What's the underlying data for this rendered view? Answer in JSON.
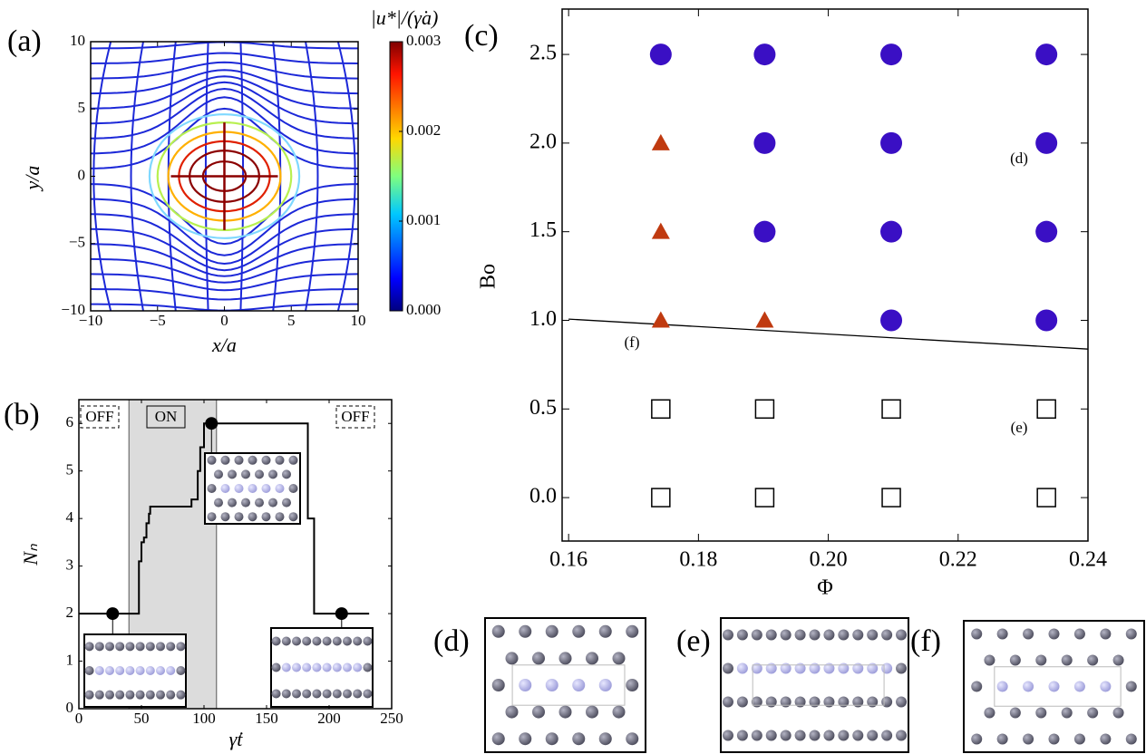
{
  "chart_data": [
    {
      "type": "streamplot",
      "panel_label": "(a)",
      "x_label": "x/a",
      "y_label": "y/a",
      "xlim": [
        -10,
        10
      ],
      "ylim": [
        -10,
        10
      ],
      "xticks": [
        {
          "value": -10,
          "label": "−10"
        },
        {
          "value": -5,
          "label": "−5"
        },
        0,
        5,
        10
      ],
      "yticks": [
        {
          "value": -10,
          "label": "−10"
        },
        {
          "value": -5,
          "label": "−5"
        },
        0,
        5,
        10
      ],
      "colorbar_label": "|u*|/(γ̇a)",
      "clim": [
        0,
        0.003
      ],
      "cticks": [
        {
          "value": 0,
          "label": "0.000"
        },
        {
          "value": 0.001,
          "label": "0.001"
        },
        {
          "value": 0.002,
          "label": "0.002"
        },
        {
          "value": 0.003,
          "label": "0.003"
        }
      ]
    },
    {
      "type": "step",
      "panel_label": "(b)",
      "x_label": "γ̇t",
      "y_label": "Nₙ",
      "xlim": [
        0,
        250
      ],
      "ylim": [
        0,
        6.5
      ],
      "xticks": [
        0,
        50,
        100,
        150,
        200,
        250
      ],
      "yticks": [
        0,
        1,
        2,
        3,
        4,
        5,
        6
      ],
      "on_region": [
        40,
        110
      ],
      "region_labels": [
        "OFF",
        "ON",
        "OFF"
      ],
      "series": [
        {
          "color": "#000000",
          "x": [
            0,
            47,
            48,
            50,
            52,
            54,
            56,
            57,
            88,
            90,
            95,
            97,
            100,
            182,
            183,
            187,
            188,
            232
          ],
          "values": [
            2,
            2,
            3.1,
            3.5,
            3.6,
            3.9,
            4.1,
            4.25,
            4.25,
            4.4,
            5,
            5.5,
            6,
            6,
            4,
            4,
            2,
            2
          ]
        }
      ],
      "markers": {
        "x": [
          27,
          106,
          210
        ],
        "values": [
          2,
          6,
          2
        ]
      }
    },
    {
      "type": "scatter",
      "panel_label": "(c)",
      "x_label": "Φ",
      "y_label": "Bo",
      "xlim": [
        0.159,
        0.24
      ],
      "ylim": [
        -0.245,
        2.756
      ],
      "xticks": [
        0.16,
        0.18,
        {
          "value": 0.2,
          "label": "0.20"
        },
        0.22,
        0.24
      ],
      "yticks": [
        {
          "value": 0,
          "label": "0.0"
        },
        0.5,
        {
          "value": 1,
          "label": "1.0"
        },
        1.5,
        {
          "value": 2,
          "label": "2.0"
        },
        2.5
      ],
      "series": [
        {
          "marker": "circle",
          "color": "#3a0fc4",
          "x": [
            0.1742,
            0.1902,
            0.2097,
            0.2336,
            0.1902,
            0.2097,
            0.2336,
            0.1902,
            0.2097,
            0.2336,
            0.2097,
            0.2336
          ],
          "values": [
            2.5,
            2.5,
            2.5,
            2.5,
            2,
            2,
            2,
            1.5,
            1.5,
            1.5,
            1,
            1
          ]
        },
        {
          "marker": "triangle",
          "color": "#c03a10",
          "x": [
            0.1742,
            0.1742,
            0.1742,
            0.1902
          ],
          "values": [
            2,
            1.5,
            1,
            1
          ]
        },
        {
          "marker": "square",
          "color": "#000000",
          "x": [
            0.1742,
            0.1902,
            0.2097,
            0.2336,
            0.1742,
            0.1902,
            0.2097,
            0.2336
          ],
          "values": [
            0.5,
            0.5,
            0.5,
            0.5,
            0,
            0,
            0,
            0
          ]
        }
      ],
      "boundary_line": {
        "x": [
          0.16,
          0.24
        ],
        "values": [
          1.007,
          0.838
        ]
      },
      "annotations": [
        "(d)",
        "(e)",
        "(f)"
      ]
    }
  ],
  "snapshots": [
    "(d)",
    "(e)",
    "(f)"
  ]
}
